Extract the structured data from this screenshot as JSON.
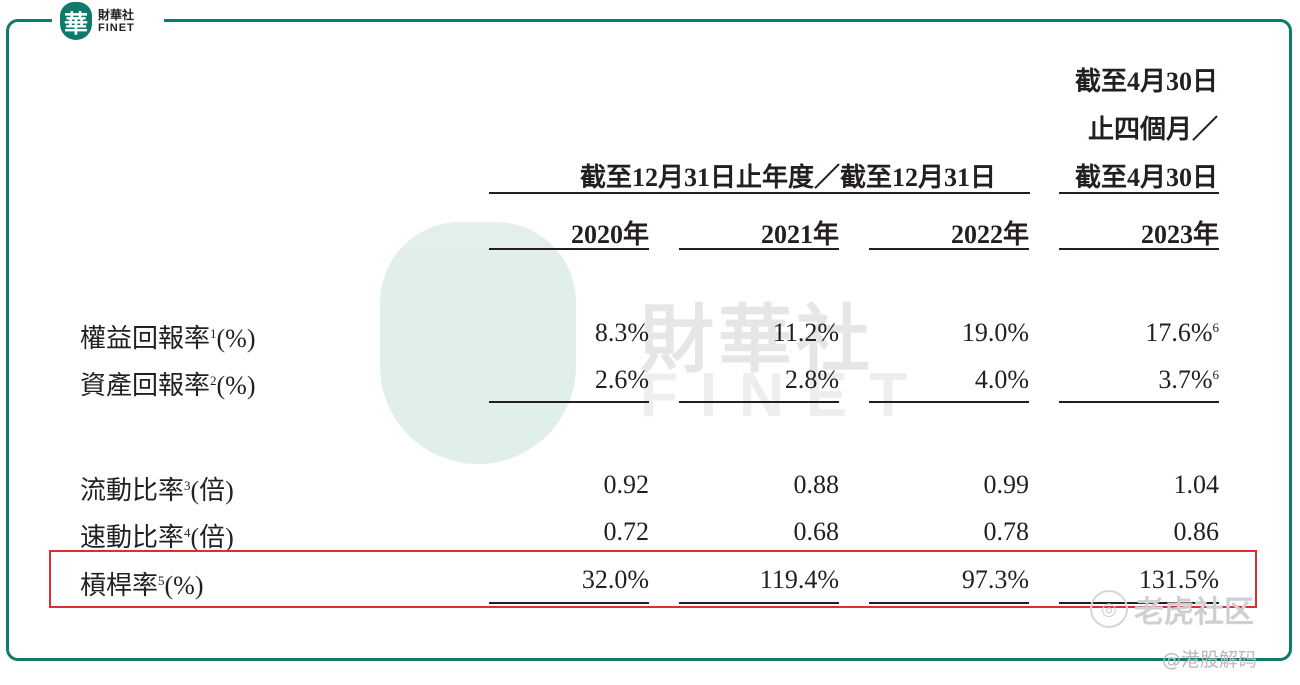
{
  "brand": {
    "seal_char": "華",
    "name_cn": "財華社",
    "name_en": "FINET"
  },
  "watermark": {
    "seal_char": "華",
    "name_cn": "財華社",
    "name_en": "FINET"
  },
  "header": {
    "group_left": "截至12月31日止年度／截至12月31日",
    "group_right_line1": "截至4月30日",
    "group_right_line2": "止四個月／",
    "group_right_line3": "截至4月30日",
    "years": [
      "2020年",
      "2021年",
      "2022年",
      "2023年"
    ]
  },
  "rows": [
    {
      "label": "權益回報率",
      "note": "1",
      "unit": "(%)",
      "values": [
        "8.3%",
        "11.2%",
        "19.0%",
        "17.6%"
      ],
      "last_note": "6"
    },
    {
      "label": "資產回報率",
      "note": "2",
      "unit": "(%)",
      "values": [
        "2.6%",
        "2.8%",
        "4.0%",
        "3.7%"
      ],
      "last_note": "6"
    },
    {
      "label": "流動比率",
      "note": "3",
      "unit": "(倍)",
      "values": [
        "0.92",
        "0.88",
        "0.99",
        "1.04"
      ],
      "last_note": ""
    },
    {
      "label": "速動比率",
      "note": "4",
      "unit": "(倍)",
      "values": [
        "0.72",
        "0.68",
        "0.78",
        "0.86"
      ],
      "last_note": ""
    },
    {
      "label": "槓桿率",
      "note": "5",
      "unit": "(%)",
      "values": [
        "32.0%",
        "119.4%",
        "97.3%",
        "131.5%"
      ],
      "last_note": ""
    }
  ],
  "overlay": {
    "tiger_text": "老虎社区",
    "credit": "@港股解码"
  },
  "colors": {
    "frame": "#0d7a6c",
    "highlight": "#d93131"
  }
}
